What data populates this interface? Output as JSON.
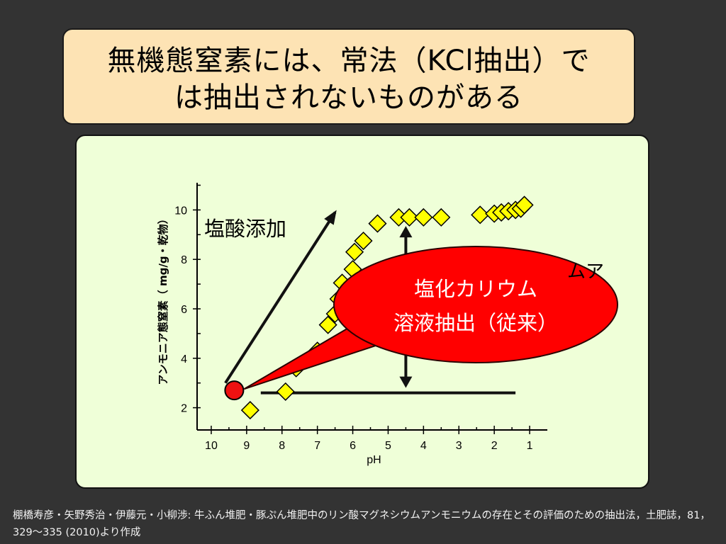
{
  "title": "無機態窒素には、常法（KCl抽出）では抽出されないものがある",
  "title_lines": [
    "無機態窒素には、常法（KCl抽出）で",
    "は抽出されないものがある"
  ],
  "colors": {
    "background": "#333333",
    "title_box": "#fde3b4",
    "chart_panel": "#efffd8",
    "marker_fill": "#ffff00",
    "callout_fill": "#ff0000",
    "red_dot": "#ee1111"
  },
  "chart_data": {
    "type": "scatter",
    "xlabel": "pH",
    "ylabel": "アンモニア態窒素（ mg/g・乾物）",
    "x_ticks": [
      10,
      9,
      8,
      7,
      6,
      5,
      4,
      3,
      2,
      1
    ],
    "xlim": [
      10.4,
      0.5
    ],
    "y_ticks": [
      2,
      4,
      6,
      8,
      10
    ],
    "ylim": [
      1.1,
      11.1
    ],
    "x_reversed": true,
    "marker": "yellow-diamond",
    "points": [
      {
        "x": 8.9,
        "y": 1.9
      },
      {
        "x": 7.9,
        "y": 2.65
      },
      {
        "x": 7.6,
        "y": 3.6
      },
      {
        "x": 7.0,
        "y": 4.3
      },
      {
        "x": 6.7,
        "y": 5.35
      },
      {
        "x": 6.5,
        "y": 5.8
      },
      {
        "x": 6.4,
        "y": 6.4
      },
      {
        "x": 6.3,
        "y": 7.05
      },
      {
        "x": 6.0,
        "y": 7.6
      },
      {
        "x": 5.95,
        "y": 8.3
      },
      {
        "x": 5.7,
        "y": 8.75
      },
      {
        "x": 5.3,
        "y": 9.45
      },
      {
        "x": 4.7,
        "y": 9.7
      },
      {
        "x": 4.4,
        "y": 9.7
      },
      {
        "x": 4.0,
        "y": 9.7
      },
      {
        "x": 3.5,
        "y": 9.7
      },
      {
        "x": 2.4,
        "y": 9.8
      },
      {
        "x": 2.0,
        "y": 9.85
      },
      {
        "x": 1.8,
        "y": 9.9
      },
      {
        "x": 1.6,
        "y": 9.95
      },
      {
        "x": 1.4,
        "y": 10.0
      },
      {
        "x": 1.25,
        "y": 10.05
      },
      {
        "x": 1.15,
        "y": 10.2
      }
    ],
    "reference_point": {
      "x": 9.35,
      "y": 2.7
    },
    "baseline": {
      "x_start": 8.6,
      "x_end": 1.4,
      "y": 2.6
    },
    "range_arrow": {
      "x": 4.5,
      "y_bottom": 2.8,
      "y_top": 9.35
    },
    "trend_arrow": {
      "x_start": 9.6,
      "y_start": 3.0,
      "x_end": 6.5,
      "y_end": 9.9
    },
    "annotations": {
      "acid_label": "塩酸添加",
      "partial_label": "ムア",
      "callout_line1": "塩化カリウム",
      "callout_line2": "溶液抽出（従来）"
    }
  },
  "footer": "棚橋寿彦・矢野秀治・伊藤元・小柳渉: 牛ふん堆肥・豚ぷん堆肥中のリン酸マグネシウムアンモニウムの存在とその評価のための抽出法，土肥誌，81，329～335 (2010)より作成"
}
